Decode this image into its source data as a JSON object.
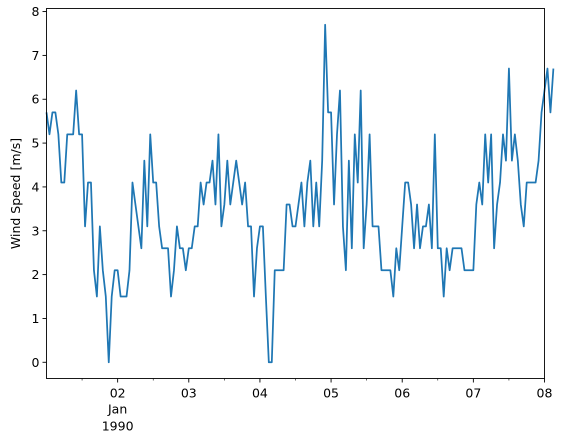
{
  "chart_data": {
    "type": "line",
    "title": "",
    "xlabel": "",
    "ylabel": "Wind Speed [m/s]",
    "xlim": [
      "1990-01-01 00:00",
      "1990-01-08 00:00"
    ],
    "ylim": [
      -0.37,
      8.07
    ],
    "grid": false,
    "legend": "none",
    "x_start": "1990-01-01 00:00",
    "x_step_hours": 1,
    "yticks": [
      0,
      1,
      2,
      3,
      4,
      5,
      6,
      7,
      8
    ],
    "xticks": [
      {
        "x": "1990-01-02",
        "major": "02",
        "minor": "Jan",
        "year": "1990"
      },
      {
        "x": "1990-01-03",
        "major": "03"
      },
      {
        "x": "1990-01-04",
        "major": "04"
      },
      {
        "x": "1990-01-05",
        "major": "05"
      },
      {
        "x": "1990-01-06",
        "major": "06"
      },
      {
        "x": "1990-01-07",
        "major": "07"
      },
      {
        "x": "1990-01-08",
        "major": "08"
      }
    ],
    "series": [
      {
        "color": "#1f77b4",
        "values": [
          5.7,
          5.2,
          5.7,
          5.7,
          5.2,
          4.1,
          4.1,
          5.2,
          5.2,
          5.2,
          6.2,
          5.2,
          5.2,
          3.1,
          4.1,
          4.1,
          2.1,
          1.5,
          3.1,
          2.1,
          1.5,
          0.0,
          1.5,
          2.1,
          2.1,
          1.5,
          1.5,
          1.5,
          2.1,
          4.1,
          3.6,
          3.1,
          2.6,
          4.6,
          3.1,
          5.2,
          4.1,
          4.1,
          3.1,
          2.6,
          2.6,
          2.6,
          1.5,
          2.1,
          3.1,
          2.6,
          2.6,
          2.1,
          2.6,
          2.6,
          3.1,
          3.1,
          4.1,
          3.6,
          4.1,
          4.1,
          4.6,
          3.6,
          5.2,
          3.1,
          3.6,
          4.6,
          3.6,
          4.1,
          4.6,
          4.1,
          3.6,
          4.1,
          3.1,
          3.1,
          1.5,
          2.6,
          3.1,
          3.1,
          1.5,
          0.0,
          0.0,
          2.1,
          2.1,
          2.1,
          2.1,
          3.6,
          3.6,
          3.1,
          3.1,
          3.6,
          4.1,
          3.1,
          4.1,
          4.6,
          3.1,
          4.1,
          3.1,
          4.6,
          7.7,
          5.7,
          5.7,
          3.6,
          5.2,
          6.2,
          3.1,
          2.1,
          4.6,
          2.6,
          5.2,
          4.1,
          6.2,
          2.6,
          3.6,
          5.2,
          3.1,
          3.1,
          3.1,
          2.1,
          2.1,
          2.1,
          2.1,
          1.5,
          2.6,
          2.1,
          3.1,
          4.1,
          4.1,
          3.6,
          2.6,
          3.6,
          2.6,
          3.1,
          3.1,
          3.6,
          2.6,
          5.2,
          2.6,
          2.6,
          1.5,
          2.6,
          2.1,
          2.6,
          2.6,
          2.6,
          2.6,
          2.1,
          2.1,
          2.1,
          2.1,
          3.6,
          4.1,
          3.6,
          5.2,
          4.1,
          5.2,
          2.6,
          3.6,
          4.1,
          5.2,
          4.6,
          6.7,
          4.6,
          5.2,
          4.6,
          3.6,
          3.1,
          4.1,
          4.1,
          4.1,
          4.1,
          4.6,
          5.7,
          6.2,
          6.7,
          5.7,
          6.7
        ]
      }
    ]
  }
}
